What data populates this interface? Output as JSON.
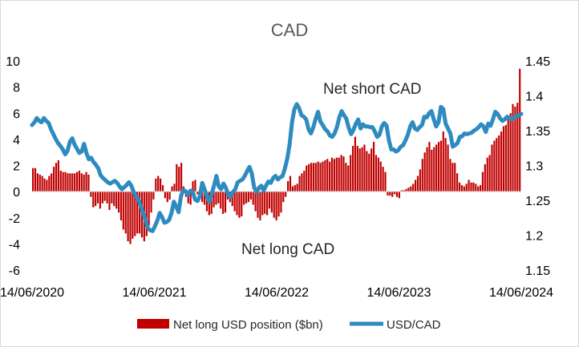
{
  "chart_data": {
    "type": "bar+line",
    "title": "CAD",
    "x_tick_labels": [
      "14/06/2020",
      "14/06/2021",
      "14/06/2022",
      "14/06/2023",
      "14/06/2024"
    ],
    "y_left": {
      "lim": [
        -6,
        10
      ],
      "ticks": [
        "-6",
        "-4",
        "-2",
        "0",
        "2",
        "4",
        "6",
        "8",
        "10"
      ]
    },
    "y_right": {
      "lim": [
        1.15,
        1.45
      ],
      "ticks": [
        "1.15",
        "1.2",
        "1.25",
        "1.3",
        "1.35",
        "1.4",
        "1.45"
      ]
    },
    "annotations": {
      "short": "Net short CAD",
      "long": "Net long CAD"
    },
    "legend": {
      "bars": "Net long USD position ($bn)",
      "line": "USD/CAD",
      "position": "bottom"
    },
    "colors": {
      "bars": "#c00000",
      "line": "#2e8bc0"
    },
    "series": [
      {
        "name": "Net long USD position ($bn)",
        "kind": "bar",
        "axis": "left",
        "values": [
          1.8,
          1.8,
          1.4,
          1.3,
          1.2,
          1.0,
          0.9,
          1.2,
          1.4,
          1.9,
          2.2,
          2.4,
          1.6,
          1.5,
          1.5,
          1.4,
          1.4,
          1.4,
          1.4,
          1.5,
          1.6,
          1.4,
          1.3,
          1.5,
          1.3,
          -0.4,
          -1.2,
          -1.1,
          -0.9,
          -1.3,
          -0.9,
          -0.7,
          -0.9,
          -1.4,
          -0.9,
          -1.1,
          -1.3,
          -1.6,
          -2.2,
          -2.9,
          -3.2,
          -3.8,
          -4.0,
          -3.6,
          -3.4,
          -3.2,
          -3.2,
          -3.5,
          -3.8,
          -3.4,
          -2.6,
          -1.6,
          -0.6,
          1.0,
          1.2,
          1.0,
          0.5,
          -0.5,
          -0.8,
          -0.6,
          0.4,
          0.6,
          2.1,
          1.9,
          2.2,
          0.4,
          -0.4,
          -0.9,
          -1.0,
          0.8,
          0.9,
          -0.2,
          -0.5,
          -0.8,
          -1.0,
          -1.5,
          -1.8,
          -1.7,
          -1.2,
          -1.0,
          -0.9,
          -1.3,
          -1.7,
          -1.6,
          -0.6,
          -0.8,
          -1.1,
          -1.5,
          -1.8,
          -2.0,
          -1.9,
          -1.0,
          -0.9,
          -0.8,
          -0.6,
          -1.0,
          -1.5,
          -2.0,
          -2.2,
          -1.8,
          -1.7,
          -1.8,
          -1.3,
          -1.6,
          -2.0,
          -2.2,
          -1.9,
          -1.6,
          -0.8,
          -0.4,
          0.8,
          1.2,
          0.4,
          0.5,
          0.6,
          1.2,
          1.4,
          1.6,
          2.0,
          2.1,
          2.2,
          2.2,
          2.2,
          2.3,
          2.2,
          2.3,
          2.4,
          2.5,
          2.3,
          2.6,
          2.5,
          2.6,
          2.6,
          2.8,
          2.7,
          2.2,
          2.0,
          2.8,
          3.5,
          4.2,
          3.5,
          3.3,
          3.4,
          3.6,
          3.1,
          2.9,
          3.3,
          3.8,
          2.8,
          2.6,
          2.3,
          1.9,
          1.5,
          -0.3,
          -0.3,
          -0.4,
          -0.2,
          -0.4,
          -0.5,
          0.1,
          0.1,
          0.2,
          0.3,
          0.4,
          0.6,
          0.9,
          1.2,
          1.7,
          2.5,
          3.0,
          3.4,
          3.8,
          3.2,
          3.4,
          3.6,
          3.8,
          3.9,
          4.6,
          4.1,
          3.6,
          2.5,
          2.2,
          2.2,
          1.4,
          0.7,
          0.5,
          0.4,
          0.6,
          0.9,
          0.7,
          0.7,
          0.6,
          0.4,
          0.5,
          1.5,
          2.1,
          2.6,
          2.8,
          3.6,
          3.9,
          4.1,
          4.3,
          4.6,
          5.0,
          5.1,
          5.6,
          6.0,
          6.7,
          6.5,
          6.8,
          9.4
        ]
      },
      {
        "name": "USD/CAD",
        "kind": "line",
        "axis": "right",
        "values": [
          1.358,
          1.362,
          1.368,
          1.364,
          1.362,
          1.368,
          1.364,
          1.361,
          1.352,
          1.345,
          1.338,
          1.332,
          1.328,
          1.323,
          1.316,
          1.321,
          1.334,
          1.339,
          1.33,
          1.324,
          1.318,
          1.32,
          1.331,
          1.318,
          1.309,
          1.311,
          1.305,
          1.301,
          1.296,
          1.286,
          1.282,
          1.279,
          1.276,
          1.274,
          1.276,
          1.278,
          1.275,
          1.27,
          1.266,
          1.269,
          1.272,
          1.276,
          1.271,
          1.262,
          1.255,
          1.252,
          1.241,
          1.232,
          1.221,
          1.21,
          1.207,
          1.206,
          1.213,
          1.221,
          1.232,
          1.226,
          1.218,
          1.219,
          1.222,
          1.232,
          1.248,
          1.241,
          1.233,
          1.256,
          1.265,
          1.263,
          1.258,
          1.264,
          1.262,
          1.251,
          1.249,
          1.256,
          1.275,
          1.266,
          1.255,
          1.248,
          1.259,
          1.271,
          1.285,
          1.27,
          1.266,
          1.274,
          1.268,
          1.258,
          1.255,
          1.262,
          1.266,
          1.276,
          1.278,
          1.28,
          1.285,
          1.292,
          1.298,
          1.288,
          1.268,
          1.262,
          1.268,
          1.271,
          1.264,
          1.271,
          1.277,
          1.275,
          1.282,
          1.285,
          1.28,
          1.283,
          1.285,
          1.296,
          1.31,
          1.331,
          1.362,
          1.381,
          1.388,
          1.382,
          1.372,
          1.37,
          1.366,
          1.352,
          1.346,
          1.355,
          1.367,
          1.377,
          1.363,
          1.358,
          1.352,
          1.349,
          1.343,
          1.341,
          1.346,
          1.355,
          1.369,
          1.378,
          1.372,
          1.367,
          1.354,
          1.345,
          1.351,
          1.36,
          1.366,
          1.353,
          1.359,
          1.356,
          1.356,
          1.355,
          1.355,
          1.349,
          1.341,
          1.344,
          1.356,
          1.361,
          1.357,
          1.336,
          1.323,
          1.323,
          1.32,
          1.322,
          1.327,
          1.329,
          1.336,
          1.344,
          1.356,
          1.362,
          1.353,
          1.351,
          1.355,
          1.358,
          1.37,
          1.369,
          1.375,
          1.378,
          1.366,
          1.356,
          1.362,
          1.384,
          1.381,
          1.36,
          1.353,
          1.346,
          1.327,
          1.329,
          1.332,
          1.341,
          1.342,
          1.346,
          1.345,
          1.346,
          1.347,
          1.35,
          1.352,
          1.355,
          1.359,
          1.356,
          1.348,
          1.36,
          1.357,
          1.366,
          1.377,
          1.374,
          1.368,
          1.364,
          1.366,
          1.37,
          1.368,
          1.366,
          1.369,
          1.371,
          1.372,
          1.374
        ]
      }
    ]
  }
}
